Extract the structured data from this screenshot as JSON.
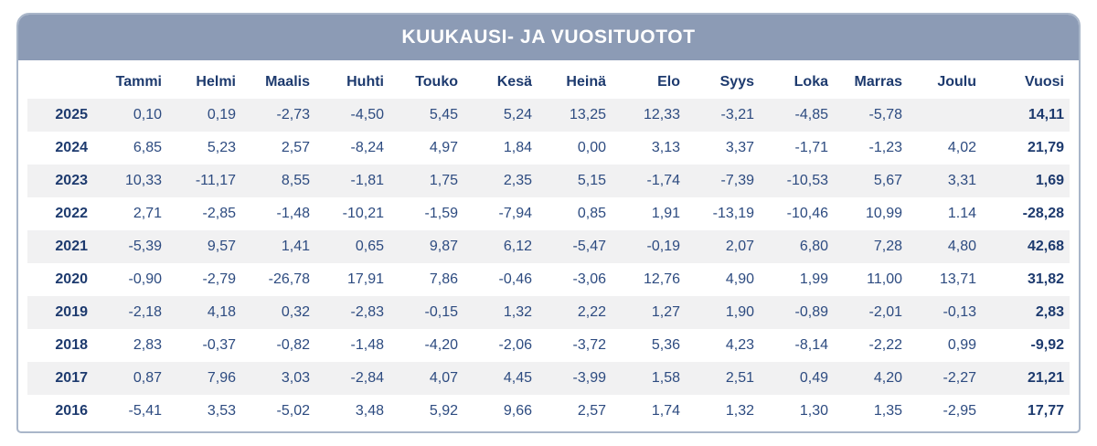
{
  "title": "KUUKAUSI- JA VUOSITUOTOT",
  "colors": {
    "header_band": "#8C9BB5",
    "title_text": "#FFFFFF",
    "heading_text": "#1D3A6E",
    "value_text": "#2D4B80",
    "row_stripe": "#F1F1F2",
    "card_border": "#A9B6C9",
    "background": "#FFFFFF"
  },
  "table": {
    "columns": [
      "",
      "Tammi",
      "Helmi",
      "Maalis",
      "Huhti",
      "Touko",
      "Kesä",
      "Heinä",
      "Elo",
      "Syys",
      "Loka",
      "Marras",
      "Joulu",
      "Vuosi"
    ],
    "rows": [
      {
        "year": "2025",
        "values": [
          "0,10",
          "0,19",
          "-2,73",
          "-4,50",
          "5,45",
          "5,24",
          "13,25",
          "12,33",
          "-3,21",
          "-4,85",
          "-5,78",
          ""
        ],
        "annual": "14,11"
      },
      {
        "year": "2024",
        "values": [
          "6,85",
          "5,23",
          "2,57",
          "-8,24",
          "4,97",
          "1,84",
          "0,00",
          "3,13",
          "3,37",
          "-1,71",
          "-1,23",
          "4,02"
        ],
        "annual": "21,79"
      },
      {
        "year": "2023",
        "values": [
          "10,33",
          "-11,17",
          "8,55",
          "-1,81",
          "1,75",
          "2,35",
          "5,15",
          "-1,74",
          "-7,39",
          "-10,53",
          "5,67",
          "3,31"
        ],
        "annual": "1,69"
      },
      {
        "year": "2022",
        "values": [
          "2,71",
          "-2,85",
          "-1,48",
          "-10,21",
          "-1,59",
          "-7,94",
          "0,85",
          "1,91",
          "-13,19",
          "-10,46",
          "10,99",
          "1.14"
        ],
        "annual": "-28,28"
      },
      {
        "year": "2021",
        "values": [
          "-5,39",
          "9,57",
          "1,41",
          "0,65",
          "9,87",
          "6,12",
          "-5,47",
          "-0,19",
          "2,07",
          "6,80",
          "7,28",
          "4,80"
        ],
        "annual": "42,68"
      },
      {
        "year": "2020",
        "values": [
          "-0,90",
          "-2,79",
          "-26,78",
          "17,91",
          "7,86",
          "-0,46",
          "-3,06",
          "12,76",
          "4,90",
          "1,99",
          "11,00",
          "13,71"
        ],
        "annual": "31,82"
      },
      {
        "year": "2019",
        "values": [
          "-2,18",
          "4,18",
          "0,32",
          "-2,83",
          "-0,15",
          "1,32",
          "2,22",
          "1,27",
          "1,90",
          "-0,89",
          "-2,01",
          "-0,13"
        ],
        "annual": "2,83"
      },
      {
        "year": "2018",
        "values": [
          "2,83",
          "-0,37",
          "-0,82",
          "-1,48",
          "-4,20",
          "-2,06",
          "-3,72",
          "5,36",
          "4,23",
          "-8,14",
          "-2,22",
          "0,99"
        ],
        "annual": "-9,92"
      },
      {
        "year": "2017",
        "values": [
          "0,87",
          "7,96",
          "3,03",
          "-2,84",
          "4,07",
          "4,45",
          "-3,99",
          "1,58",
          "2,51",
          "0,49",
          "4,20",
          "-2,27"
        ],
        "annual": "21,21"
      },
      {
        "year": "2016",
        "values": [
          "-5,41",
          "3,53",
          "-5,02",
          "3,48",
          "5,92",
          "9,66",
          "2,57",
          "1,74",
          "1,32",
          "1,30",
          "1,35",
          "-2,95"
        ],
        "annual": "17,77"
      }
    ]
  },
  "chart_data": {
    "type": "table",
    "title": "KUUKAUSI- JA VUOSITUOTOT",
    "categories": [
      "Tammi",
      "Helmi",
      "Maalis",
      "Huhti",
      "Touko",
      "Kesä",
      "Heinä",
      "Elo",
      "Syys",
      "Loka",
      "Marras",
      "Joulu"
    ],
    "annual_column_label": "Vuosi",
    "series": [
      {
        "name": "2025",
        "values": [
          0.1,
          0.19,
          -2.73,
          -4.5,
          5.45,
          5.24,
          13.25,
          12.33,
          -3.21,
          -4.85,
          -5.78,
          null
        ],
        "annual": 14.11
      },
      {
        "name": "2024",
        "values": [
          6.85,
          5.23,
          2.57,
          -8.24,
          4.97,
          1.84,
          0.0,
          3.13,
          3.37,
          -1.71,
          -1.23,
          4.02
        ],
        "annual": 21.79
      },
      {
        "name": "2023",
        "values": [
          10.33,
          -11.17,
          8.55,
          -1.81,
          1.75,
          2.35,
          5.15,
          -1.74,
          -7.39,
          -10.53,
          5.67,
          3.31
        ],
        "annual": 1.69
      },
      {
        "name": "2022",
        "values": [
          2.71,
          -2.85,
          -1.48,
          -10.21,
          -1.59,
          -7.94,
          0.85,
          1.91,
          -13.19,
          -10.46,
          10.99,
          1.14
        ],
        "annual": -28.28
      },
      {
        "name": "2021",
        "values": [
          -5.39,
          9.57,
          1.41,
          0.65,
          9.87,
          6.12,
          -5.47,
          -0.19,
          2.07,
          6.8,
          7.28,
          4.8
        ],
        "annual": 42.68
      },
      {
        "name": "2020",
        "values": [
          -0.9,
          -2.79,
          -26.78,
          17.91,
          7.86,
          -0.46,
          -3.06,
          12.76,
          4.9,
          1.99,
          11.0,
          13.71
        ],
        "annual": 31.82
      },
      {
        "name": "2019",
        "values": [
          -2.18,
          4.18,
          0.32,
          -2.83,
          -0.15,
          1.32,
          2.22,
          1.27,
          1.9,
          -0.89,
          -2.01,
          -0.13
        ],
        "annual": 2.83
      },
      {
        "name": "2018",
        "values": [
          2.83,
          -0.37,
          -0.82,
          -1.48,
          -4.2,
          -2.06,
          -3.72,
          5.36,
          4.23,
          -8.14,
          -2.22,
          0.99
        ],
        "annual": -9.92
      },
      {
        "name": "2017",
        "values": [
          0.87,
          7.96,
          3.03,
          -2.84,
          4.07,
          4.45,
          -3.99,
          1.58,
          2.51,
          0.49,
          4.2,
          -2.27
        ],
        "annual": 21.21
      },
      {
        "name": "2016",
        "values": [
          -5.41,
          3.53,
          -5.02,
          3.48,
          5.92,
          9.66,
          2.57,
          1.74,
          1.32,
          1.3,
          1.35,
          -2.95
        ],
        "annual": 17.77
      }
    ],
    "layout": {
      "decimal_separator": "comma",
      "striped_rows": true,
      "grid": false
    }
  }
}
